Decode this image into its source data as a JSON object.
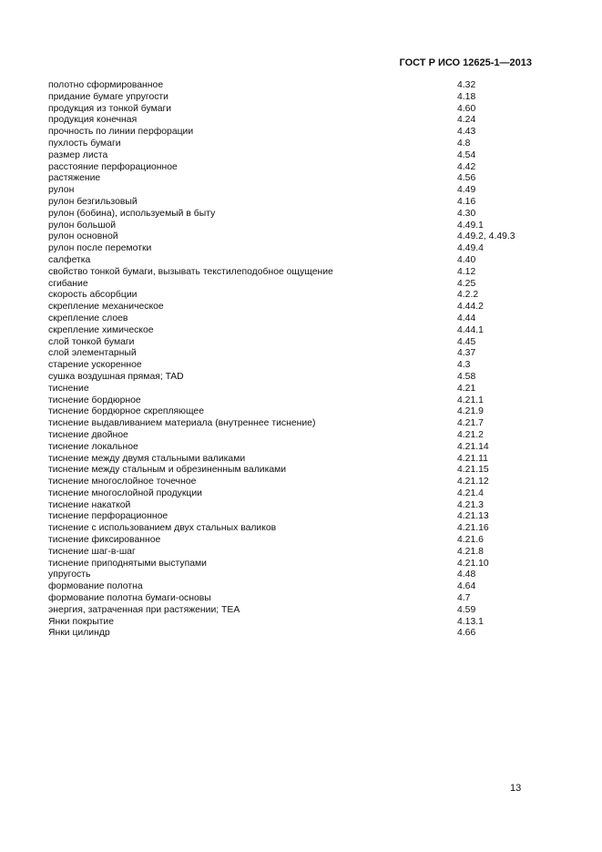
{
  "header": {
    "title": "ГОСТ Р ИСО 12625-1—2013"
  },
  "entries": [
    {
      "term": "полотно сформированное",
      "ref": "4.32"
    },
    {
      "term": "придание бумаге упругости",
      "ref": "4.18"
    },
    {
      "term": "продукция из тонкой бумаги",
      "ref": "4.60"
    },
    {
      "term": "продукция конечная",
      "ref": "4.24"
    },
    {
      "term": "прочность по линии перфорации",
      "ref": "4.43"
    },
    {
      "term": "пухлость бумаги",
      "ref": "4.8"
    },
    {
      "term": "размер листа",
      "ref": "4.54"
    },
    {
      "term": "расстояние перфорационное",
      "ref": "4.42"
    },
    {
      "term": "растяжение",
      "ref": "4.56"
    },
    {
      "term": "рулон",
      "ref": "4.49"
    },
    {
      "term": "рулон безгильзовый",
      "ref": "4.16"
    },
    {
      "term": "рулон (бобина), используемый в быту",
      "ref": "4.30"
    },
    {
      "term": "рулон большой",
      "ref": "4.49.1"
    },
    {
      "term": "рулон основной",
      "ref": "4.49.2, 4.49.3"
    },
    {
      "term": "рулон после перемотки",
      "ref": "4.49.4"
    },
    {
      "term": "салфетка",
      "ref": "4.40"
    },
    {
      "term": "свойство тонкой бумаги, вызывать текстилеподобное ощущение",
      "ref": "4.12"
    },
    {
      "term": "сгибание",
      "ref": "4.25"
    },
    {
      "term": "скорость абсорбции",
      "ref": "4.2.2"
    },
    {
      "term": "скрепление механическое",
      "ref": "4.44.2"
    },
    {
      "term": "скрепление слоев",
      "ref": "4.44"
    },
    {
      "term": "скрепление химическое",
      "ref": "4.44.1"
    },
    {
      "term": "слой тонкой бумаги",
      "ref": "4.45"
    },
    {
      "term": "слой элементарный",
      "ref": "4.37"
    },
    {
      "term": "старение ускоренное",
      "ref": "4.3"
    },
    {
      "term": "сушка воздушная прямая; TAD",
      "ref": "4.58"
    },
    {
      "term": "тиснение",
      "ref": "4.21"
    },
    {
      "term": "тиснение бордюрное",
      "ref": "4.21.1"
    },
    {
      "term": "тиснение бордюрное скрепляющее",
      "ref": "4.21.9"
    },
    {
      "term": "тиснение выдавливанием материала (внутреннее тиснение)",
      "ref": "4.21.7"
    },
    {
      "term": "тиснение двойное",
      "ref": "4.21.2"
    },
    {
      "term": "тиснение локальное",
      "ref": "4.21.14"
    },
    {
      "term": "тиснение между двумя стальными валиками",
      "ref": "4.21.11"
    },
    {
      "term": "тиснение между стальным и обрезиненным валиками",
      "ref": "4.21.15"
    },
    {
      "term": "тиснение многослойное точечное",
      "ref": "4.21.12"
    },
    {
      "term": "тиснение многослойной продукции",
      "ref": "4.21.4"
    },
    {
      "term": "тиснение накаткой",
      "ref": "4.21.3"
    },
    {
      "term": "тиснение перфорационное",
      "ref": "4.21.13"
    },
    {
      "term": "тиснение с использованием двух стальных валиков",
      "ref": "4.21.16"
    },
    {
      "term": "тиснение фиксированное",
      "ref": "4.21.6"
    },
    {
      "term": "тиснение шаг-в-шаг",
      "ref": "4.21.8"
    },
    {
      "term": "тиснение приподнятыми выступами",
      "ref": "4.21.10"
    },
    {
      "term": "упругость",
      "ref": "4.48"
    },
    {
      "term": "формование полотна",
      "ref": "4.64"
    },
    {
      "term": "формование полотна бумаги-основы",
      "ref": "4.7"
    },
    {
      "term": "энергия, затраченная при растяжении; TEA",
      "ref": "4.59"
    },
    {
      "term": "Янки покрытие",
      "ref": "4.13.1"
    },
    {
      "term": "Янки цилиндр",
      "ref": "4.66"
    }
  ],
  "footer": {
    "page_number": "13"
  }
}
